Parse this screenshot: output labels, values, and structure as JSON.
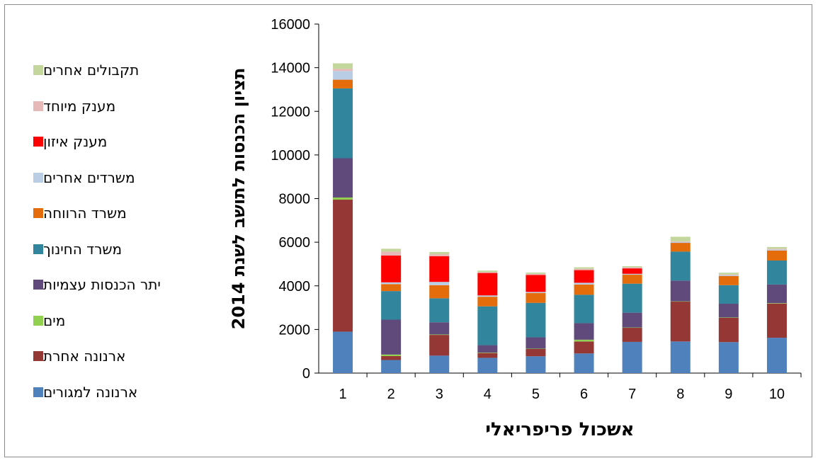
{
  "chart_data": {
    "type": "bar",
    "stacked": true,
    "title": "",
    "xlabel": "אשכול פריפריאלי",
    "ylabel": "תציון הכנסות לתושב לשנת 2014",
    "ylim": [
      0,
      16000
    ],
    "yticks": [
      "0",
      "2000",
      "4000",
      "6000",
      "8000",
      "10000",
      "12000",
      "14000",
      "16000"
    ],
    "categories": [
      "1",
      "2",
      "3",
      "4",
      "5",
      "6",
      "7",
      "8",
      "9",
      "10"
    ],
    "legend_position": "left",
    "series": [
      {
        "name": "ארנונה למגורים",
        "color": "#4f81bd",
        "values": [
          1900,
          600,
          800,
          700,
          770,
          900,
          1430,
          1450,
          1420,
          1620
        ]
      },
      {
        "name": "ארנונה אחרת",
        "color": "#953735",
        "values": [
          6050,
          180,
          950,
          220,
          340,
          550,
          650,
          1830,
          1120,
          1570
        ]
      },
      {
        "name": "מים",
        "color": "#92d050",
        "values": [
          100,
          70,
          20,
          20,
          10,
          80,
          10,
          10,
          10,
          20
        ]
      },
      {
        "name": "יתר הכנסות עצמיות",
        "color": "#604a7b",
        "values": [
          1800,
          1600,
          560,
          340,
          520,
          760,
          680,
          950,
          630,
          850
        ]
      },
      {
        "name": "משרד החינוך",
        "color": "#31859c",
        "values": [
          3200,
          1310,
          1100,
          1780,
          1580,
          1300,
          1330,
          1330,
          850,
          1100
        ]
      },
      {
        "name": "משרד הרווחה",
        "color": "#e46c0a",
        "values": [
          400,
          320,
          600,
          440,
          450,
          470,
          410,
          400,
          420,
          460
        ]
      },
      {
        "name": "משרדים אחרים",
        "color": "#b9cde5",
        "values": [
          400,
          80,
          150,
          60,
          50,
          80,
          40,
          40,
          40,
          40
        ]
      },
      {
        "name": "מענק איזון",
        "color": "#ff0000",
        "values": [
          0,
          1230,
          1180,
          1030,
          780,
          580,
          250,
          0,
          0,
          0
        ]
      },
      {
        "name": "מענק מיוחד",
        "color": "#e6b9b8",
        "values": [
          100,
          180,
          90,
          40,
          50,
          60,
          50,
          30,
          30,
          40
        ]
      },
      {
        "name": "תקבולים אחרים",
        "color": "#c3d69b",
        "values": [
          250,
          130,
          100,
          70,
          60,
          70,
          50,
          210,
          80,
          80
        ]
      }
    ]
  }
}
